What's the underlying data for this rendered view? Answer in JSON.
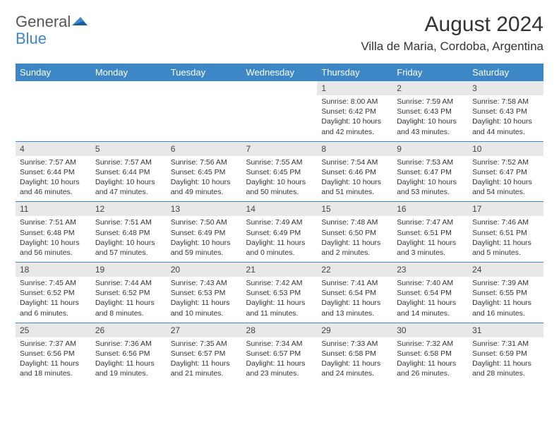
{
  "logo": {
    "textA": "General",
    "textB": "Blue"
  },
  "title": "August 2024",
  "location": "Villa de Maria, Cordoba, Argentina",
  "colors": {
    "header_bg": "#3d87c7",
    "header_text": "#ffffff",
    "daynum_bg": "#e8e8e8",
    "body_text": "#333333",
    "rule": "#3d87c7"
  },
  "day_headers": [
    "Sunday",
    "Monday",
    "Tuesday",
    "Wednesday",
    "Thursday",
    "Friday",
    "Saturday"
  ],
  "weeks": [
    [
      {
        "n": "",
        "lines": []
      },
      {
        "n": "",
        "lines": []
      },
      {
        "n": "",
        "lines": []
      },
      {
        "n": "",
        "lines": []
      },
      {
        "n": "1",
        "lines": [
          "Sunrise: 8:00 AM",
          "Sunset: 6:42 PM",
          "Daylight: 10 hours",
          "and 42 minutes."
        ]
      },
      {
        "n": "2",
        "lines": [
          "Sunrise: 7:59 AM",
          "Sunset: 6:43 PM",
          "Daylight: 10 hours",
          "and 43 minutes."
        ]
      },
      {
        "n": "3",
        "lines": [
          "Sunrise: 7:58 AM",
          "Sunset: 6:43 PM",
          "Daylight: 10 hours",
          "and 44 minutes."
        ]
      }
    ],
    [
      {
        "n": "4",
        "lines": [
          "Sunrise: 7:57 AM",
          "Sunset: 6:44 PM",
          "Daylight: 10 hours",
          "and 46 minutes."
        ]
      },
      {
        "n": "5",
        "lines": [
          "Sunrise: 7:57 AM",
          "Sunset: 6:44 PM",
          "Daylight: 10 hours",
          "and 47 minutes."
        ]
      },
      {
        "n": "6",
        "lines": [
          "Sunrise: 7:56 AM",
          "Sunset: 6:45 PM",
          "Daylight: 10 hours",
          "and 49 minutes."
        ]
      },
      {
        "n": "7",
        "lines": [
          "Sunrise: 7:55 AM",
          "Sunset: 6:45 PM",
          "Daylight: 10 hours",
          "and 50 minutes."
        ]
      },
      {
        "n": "8",
        "lines": [
          "Sunrise: 7:54 AM",
          "Sunset: 6:46 PM",
          "Daylight: 10 hours",
          "and 51 minutes."
        ]
      },
      {
        "n": "9",
        "lines": [
          "Sunrise: 7:53 AM",
          "Sunset: 6:47 PM",
          "Daylight: 10 hours",
          "and 53 minutes."
        ]
      },
      {
        "n": "10",
        "lines": [
          "Sunrise: 7:52 AM",
          "Sunset: 6:47 PM",
          "Daylight: 10 hours",
          "and 54 minutes."
        ]
      }
    ],
    [
      {
        "n": "11",
        "lines": [
          "Sunrise: 7:51 AM",
          "Sunset: 6:48 PM",
          "Daylight: 10 hours",
          "and 56 minutes."
        ]
      },
      {
        "n": "12",
        "lines": [
          "Sunrise: 7:51 AM",
          "Sunset: 6:48 PM",
          "Daylight: 10 hours",
          "and 57 minutes."
        ]
      },
      {
        "n": "13",
        "lines": [
          "Sunrise: 7:50 AM",
          "Sunset: 6:49 PM",
          "Daylight: 10 hours",
          "and 59 minutes."
        ]
      },
      {
        "n": "14",
        "lines": [
          "Sunrise: 7:49 AM",
          "Sunset: 6:49 PM",
          "Daylight: 11 hours",
          "and 0 minutes."
        ]
      },
      {
        "n": "15",
        "lines": [
          "Sunrise: 7:48 AM",
          "Sunset: 6:50 PM",
          "Daylight: 11 hours",
          "and 2 minutes."
        ]
      },
      {
        "n": "16",
        "lines": [
          "Sunrise: 7:47 AM",
          "Sunset: 6:51 PM",
          "Daylight: 11 hours",
          "and 3 minutes."
        ]
      },
      {
        "n": "17",
        "lines": [
          "Sunrise: 7:46 AM",
          "Sunset: 6:51 PM",
          "Daylight: 11 hours",
          "and 5 minutes."
        ]
      }
    ],
    [
      {
        "n": "18",
        "lines": [
          "Sunrise: 7:45 AM",
          "Sunset: 6:52 PM",
          "Daylight: 11 hours",
          "and 6 minutes."
        ]
      },
      {
        "n": "19",
        "lines": [
          "Sunrise: 7:44 AM",
          "Sunset: 6:52 PM",
          "Daylight: 11 hours",
          "and 8 minutes."
        ]
      },
      {
        "n": "20",
        "lines": [
          "Sunrise: 7:43 AM",
          "Sunset: 6:53 PM",
          "Daylight: 11 hours",
          "and 10 minutes."
        ]
      },
      {
        "n": "21",
        "lines": [
          "Sunrise: 7:42 AM",
          "Sunset: 6:53 PM",
          "Daylight: 11 hours",
          "and 11 minutes."
        ]
      },
      {
        "n": "22",
        "lines": [
          "Sunrise: 7:41 AM",
          "Sunset: 6:54 PM",
          "Daylight: 11 hours",
          "and 13 minutes."
        ]
      },
      {
        "n": "23",
        "lines": [
          "Sunrise: 7:40 AM",
          "Sunset: 6:54 PM",
          "Daylight: 11 hours",
          "and 14 minutes."
        ]
      },
      {
        "n": "24",
        "lines": [
          "Sunrise: 7:39 AM",
          "Sunset: 6:55 PM",
          "Daylight: 11 hours",
          "and 16 minutes."
        ]
      }
    ],
    [
      {
        "n": "25",
        "lines": [
          "Sunrise: 7:37 AM",
          "Sunset: 6:56 PM",
          "Daylight: 11 hours",
          "and 18 minutes."
        ]
      },
      {
        "n": "26",
        "lines": [
          "Sunrise: 7:36 AM",
          "Sunset: 6:56 PM",
          "Daylight: 11 hours",
          "and 19 minutes."
        ]
      },
      {
        "n": "27",
        "lines": [
          "Sunrise: 7:35 AM",
          "Sunset: 6:57 PM",
          "Daylight: 11 hours",
          "and 21 minutes."
        ]
      },
      {
        "n": "28",
        "lines": [
          "Sunrise: 7:34 AM",
          "Sunset: 6:57 PM",
          "Daylight: 11 hours",
          "and 23 minutes."
        ]
      },
      {
        "n": "29",
        "lines": [
          "Sunrise: 7:33 AM",
          "Sunset: 6:58 PM",
          "Daylight: 11 hours",
          "and 24 minutes."
        ]
      },
      {
        "n": "30",
        "lines": [
          "Sunrise: 7:32 AM",
          "Sunset: 6:58 PM",
          "Daylight: 11 hours",
          "and 26 minutes."
        ]
      },
      {
        "n": "31",
        "lines": [
          "Sunrise: 7:31 AM",
          "Sunset: 6:59 PM",
          "Daylight: 11 hours",
          "and 28 minutes."
        ]
      }
    ]
  ]
}
